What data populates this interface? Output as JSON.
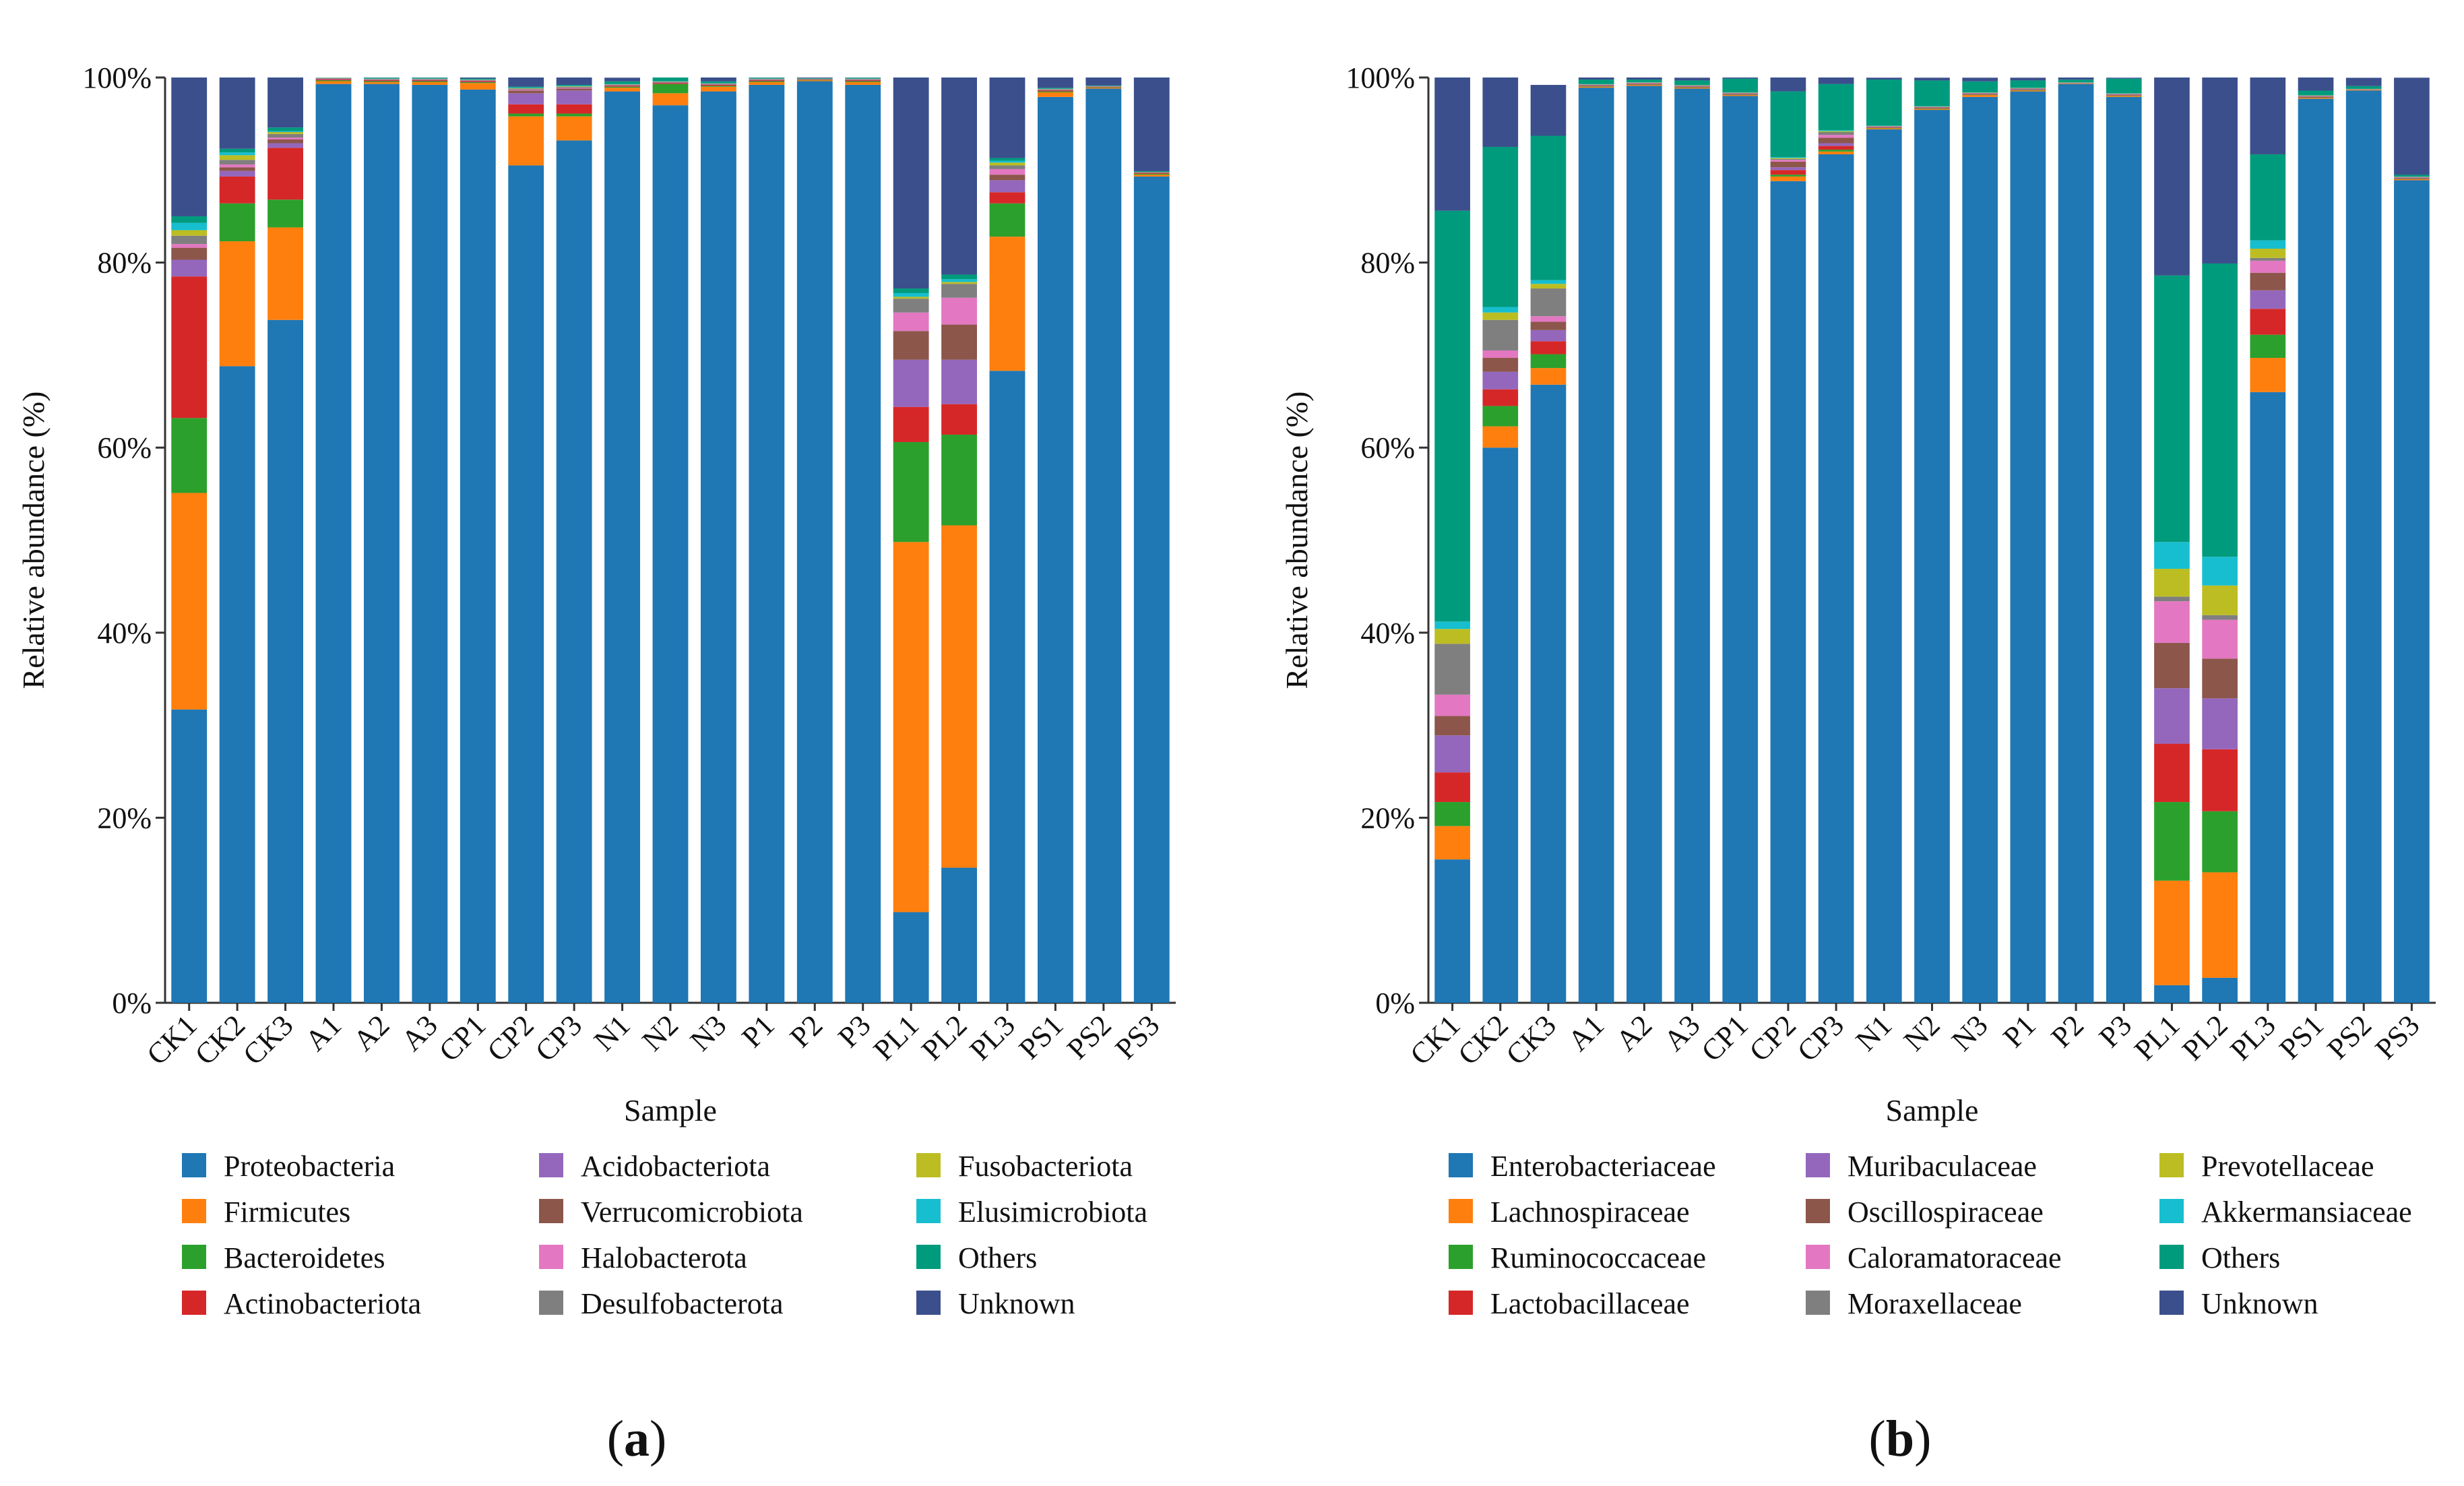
{
  "chart_data": [
    {
      "type": "bar",
      "stacked": true,
      "panel_label_open": "(",
      "panel_label": "a",
      "panel_label_close": ")",
      "xlabel": "Sample",
      "ylabel": "Relative abundance (%)",
      "ylim": [
        0,
        100
      ],
      "yticks": [
        "0%",
        "20%",
        "40%",
        "60%",
        "80%",
        "100%"
      ],
      "categories": [
        "CK1",
        "CK2",
        "CK3",
        "A1",
        "A2",
        "A3",
        "CP1",
        "CP2",
        "CP3",
        "N1",
        "N2",
        "N3",
        "P1",
        "P2",
        "P3",
        "PL1",
        "PL2",
        "PL3",
        "PS1",
        "PS2",
        "PS3"
      ],
      "series": [
        {
          "name": "Proteobacteria",
          "color": "#1f77b4",
          "values": [
            31.7,
            68.8,
            73.8,
            99.3,
            99.3,
            99.2,
            98.7,
            90.5,
            93.2,
            98.5,
            97.0,
            98.5,
            99.2,
            99.6,
            99.2,
            9.8,
            14.6,
            68.3,
            97.9,
            98.8,
            89.3
          ]
        },
        {
          "name": "Firmicutes",
          "color": "#ff7f0e",
          "values": [
            23.4,
            13.5,
            10.0,
            0.3,
            0.2,
            0.3,
            0.7,
            5.3,
            2.6,
            0.4,
            1.3,
            0.5,
            0.3,
            0.1,
            0.3,
            40.0,
            37.0,
            14.5,
            0.5,
            0.1,
            0.2
          ]
        },
        {
          "name": "Bacteroidetes",
          "color": "#2ca02c",
          "values": [
            8.1,
            4.1,
            3.0,
            0.1,
            0.1,
            0.1,
            0.1,
            0.3,
            0.3,
            0.1,
            1.0,
            0.1,
            0.1,
            0.05,
            0.1,
            10.8,
            9.8,
            3.6,
            0.1,
            0.05,
            0.1
          ]
        },
        {
          "name": "Actinobacteriota",
          "color": "#d62728",
          "values": [
            15.3,
            2.9,
            5.6,
            0.1,
            0.1,
            0.1,
            0.1,
            1.0,
            1.0,
            0.1,
            0.1,
            0.1,
            0.1,
            0.05,
            0.1,
            3.8,
            3.3,
            1.2,
            0.1,
            0.05,
            0.1
          ]
        },
        {
          "name": "Acidobacteriota",
          "color": "#9467bd",
          "values": [
            1.8,
            0.6,
            0.5,
            0.05,
            0.05,
            0.05,
            0.05,
            1.2,
            1.5,
            0.05,
            0.05,
            0.05,
            0.05,
            0.02,
            0.05,
            5.1,
            4.8,
            1.3,
            0.05,
            0.02,
            0.02
          ]
        },
        {
          "name": "Verrucomicrobiota",
          "color": "#8c564b",
          "values": [
            1.3,
            0.4,
            0.4,
            0.05,
            0.05,
            0.05,
            0.05,
            0.3,
            0.2,
            0.05,
            0.05,
            0.05,
            0.05,
            0.02,
            0.05,
            3.1,
            3.8,
            0.6,
            0.05,
            0.02,
            0.02
          ]
        },
        {
          "name": "Halobacterota",
          "color": "#e377c2",
          "values": [
            0.4,
            0.3,
            0.2,
            0.02,
            0.02,
            0.02,
            0.02,
            0.1,
            0.1,
            0.02,
            0.02,
            0.02,
            0.02,
            0.01,
            0.02,
            2.0,
            2.9,
            0.6,
            0.02,
            0.01,
            0.01
          ]
        },
        {
          "name": "Desulfobacterota",
          "color": "#7f7f7f",
          "values": [
            0.9,
            0.5,
            0.4,
            0.02,
            0.02,
            0.02,
            0.02,
            0.1,
            0.1,
            0.02,
            0.02,
            0.02,
            0.02,
            0.01,
            0.02,
            1.5,
            1.5,
            0.4,
            0.02,
            0.01,
            0.01
          ]
        },
        {
          "name": "Fusobacteriota",
          "color": "#bcbd22",
          "values": [
            0.6,
            0.5,
            0.2,
            0.02,
            0.02,
            0.02,
            0.02,
            0.05,
            0.05,
            0.02,
            0.02,
            0.02,
            0.02,
            0.01,
            0.02,
            0.2,
            0.2,
            0.3,
            0.02,
            0.01,
            0.01
          ]
        },
        {
          "name": "Elusimicrobiota",
          "color": "#17becf",
          "values": [
            0.8,
            0.3,
            0.1,
            0.02,
            0.02,
            0.02,
            0.02,
            0.05,
            0.05,
            0.02,
            0.02,
            0.02,
            0.02,
            0.01,
            0.02,
            0.4,
            0.3,
            0.2,
            0.02,
            0.01,
            0.01
          ]
        },
        {
          "name": "Others",
          "color": "#009b7d",
          "values": [
            0.7,
            0.4,
            0.4,
            0.1,
            0.1,
            0.1,
            0.1,
            0.1,
            0.1,
            0.3,
            0.5,
            0.2,
            0.1,
            0.05,
            0.1,
            0.5,
            0.5,
            0.3,
            0.1,
            0.05,
            0.1
          ]
        },
        {
          "name": "Unknown",
          "color": "#3b4f8c",
          "values": [
            15.0,
            7.7,
            5.4,
            0.2,
            0.3,
            0.3,
            0.3,
            1.2,
            1.2,
            0.4,
            0.6,
            0.6,
            0.3,
            0.3,
            0.2,
            22.8,
            21.4,
            8.7,
            1.2,
            1.0,
            10.2
          ]
        }
      ]
    },
    {
      "type": "bar",
      "stacked": true,
      "panel_label_open": "(",
      "panel_label": "b",
      "panel_label_close": ")",
      "xlabel": "Sample",
      "ylabel": "Relative abundance (%)",
      "ylim": [
        0,
        100
      ],
      "yticks": [
        "0%",
        "20%",
        "40%",
        "60%",
        "80%",
        "100%"
      ],
      "categories": [
        "CK1",
        "CK2",
        "CK3",
        "A1",
        "A2",
        "A3",
        "CP1",
        "CP2",
        "CP3",
        "N1",
        "N2",
        "N3",
        "P1",
        "P2",
        "P3",
        "PL1",
        "PL2",
        "PL3",
        "PS1",
        "PS2",
        "PS3"
      ],
      "series": [
        {
          "name": "Enterobacteriaceae",
          "color": "#1f77b4",
          "values": [
            15.5,
            60.0,
            66.8,
            98.9,
            99.1,
            98.8,
            98.0,
            88.8,
            91.7,
            94.4,
            96.5,
            97.9,
            98.5,
            99.3,
            97.9,
            1.9,
            2.7,
            66.0,
            97.7,
            98.6,
            88.9
          ]
        },
        {
          "name": "Lachnospiraceae",
          "color": "#ff7f0e",
          "values": [
            3.6,
            2.3,
            1.8,
            0.1,
            0.1,
            0.1,
            0.1,
            0.5,
            0.3,
            0.1,
            0.1,
            0.2,
            0.1,
            0.05,
            0.1,
            11.3,
            11.4,
            3.7,
            0.1,
            0.05,
            0.1
          ]
        },
        {
          "name": "Ruminococcaceae",
          "color": "#2ca02c",
          "values": [
            2.6,
            2.2,
            1.5,
            0.05,
            0.05,
            0.05,
            0.05,
            0.2,
            0.2,
            0.05,
            0.05,
            0.05,
            0.05,
            0.02,
            0.05,
            8.5,
            6.6,
            2.5,
            0.05,
            0.02,
            0.05
          ]
        },
        {
          "name": "Lactobacillaceae",
          "color": "#d62728",
          "values": [
            3.2,
            1.8,
            1.4,
            0.05,
            0.05,
            0.05,
            0.05,
            0.5,
            0.4,
            0.05,
            0.05,
            0.05,
            0.05,
            0.02,
            0.05,
            6.3,
            6.7,
            2.8,
            0.05,
            0.02,
            0.05
          ]
        },
        {
          "name": "Muribaculaceae",
          "color": "#9467bd",
          "values": [
            4.0,
            1.9,
            1.2,
            0.05,
            0.05,
            0.05,
            0.05,
            0.3,
            0.3,
            0.05,
            0.05,
            0.05,
            0.05,
            0.02,
            0.05,
            6.0,
            5.5,
            2.0,
            0.05,
            0.02,
            0.05
          ]
        },
        {
          "name": "Oscillospiraceae",
          "color": "#8c564b",
          "values": [
            2.1,
            1.5,
            0.9,
            0.05,
            0.05,
            0.05,
            0.05,
            0.6,
            0.6,
            0.05,
            0.05,
            0.05,
            0.05,
            0.02,
            0.05,
            4.9,
            4.3,
            1.9,
            0.05,
            0.02,
            0.05
          ]
        },
        {
          "name": "Caloramatoraceae",
          "color": "#e377c2",
          "values": [
            2.3,
            0.8,
            0.6,
            0.02,
            0.02,
            0.02,
            0.02,
            0.2,
            0.3,
            0.02,
            0.02,
            0.02,
            0.02,
            0.01,
            0.02,
            4.5,
            4.2,
            1.3,
            0.02,
            0.01,
            0.02
          ]
        },
        {
          "name": "Moraxellaceae",
          "color": "#7f7f7f",
          "values": [
            5.5,
            3.3,
            3.0,
            0.02,
            0.02,
            0.02,
            0.02,
            0.1,
            0.3,
            0.02,
            0.02,
            0.02,
            0.02,
            0.01,
            0.02,
            0.5,
            0.5,
            0.3,
            0.02,
            0.01,
            0.02
          ]
        },
        {
          "name": "Prevotellaceae",
          "color": "#bcbd22",
          "values": [
            1.6,
            0.8,
            0.5,
            0.02,
            0.02,
            0.02,
            0.02,
            0.1,
            0.1,
            0.02,
            0.02,
            0.02,
            0.02,
            0.01,
            0.02,
            3.0,
            3.2,
            1.0,
            0.02,
            0.01,
            0.02
          ]
        },
        {
          "name": "Akkermansiaceae",
          "color": "#17becf",
          "values": [
            0.8,
            0.6,
            0.4,
            0.02,
            0.02,
            0.02,
            0.02,
            0.1,
            0.1,
            0.02,
            0.02,
            0.02,
            0.02,
            0.01,
            0.02,
            2.9,
            3.1,
            0.9,
            0.02,
            0.01,
            0.02
          ]
        },
        {
          "name": "Others",
          "color": "#009b7d",
          "values": [
            44.4,
            17.3,
            15.6,
            0.5,
            0.3,
            0.5,
            1.5,
            7.1,
            5.0,
            5.0,
            2.8,
            1.2,
            0.8,
            0.3,
            1.6,
            28.8,
            31.7,
            9.3,
            0.5,
            0.3,
            0.2
          ]
        },
        {
          "name": "Unknown",
          "color": "#3b4f8c",
          "values": [
            14.4,
            7.5,
            5.5,
            0.3,
            0.3,
            0.3,
            0.2,
            1.5,
            1.2,
            0.2,
            0.3,
            0.4,
            0.3,
            0.3,
            0.1,
            21.4,
            20.1,
            8.3,
            1.5,
            0.9,
            10.5
          ]
        }
      ]
    }
  ]
}
